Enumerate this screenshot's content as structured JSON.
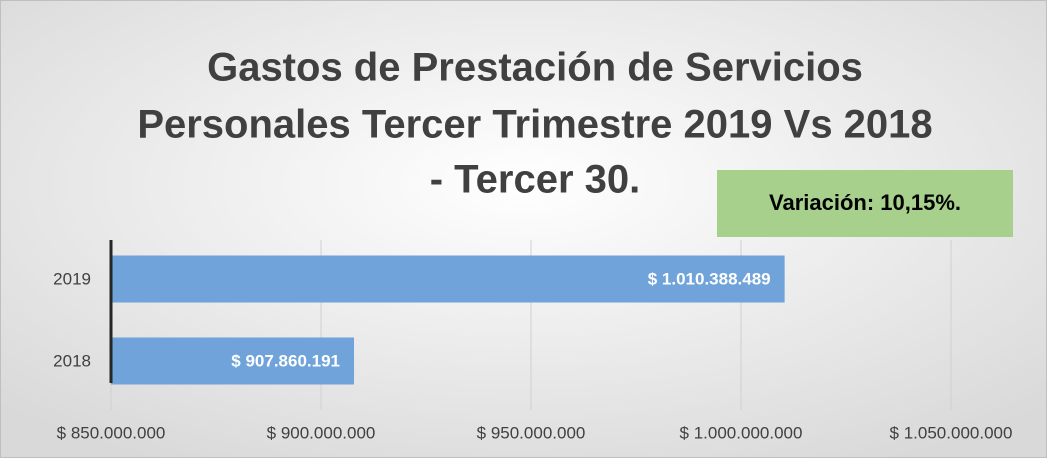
{
  "chart_data": {
    "type": "hbar",
    "title": [
      "Gastos de Prestación de Servicios",
      "Personales Tercer Trimestre 2019 Vs 2018",
      "- Tercer  30."
    ],
    "annotation": "Variación: 10,15%.",
    "categories": [
      "2019",
      "2018"
    ],
    "values": [
      1010388489,
      907860191
    ],
    "value_labels": [
      "$ 1.010.388.489",
      "$ 907.860.191"
    ],
    "color": "#6fa3da",
    "xlim": [
      850000000,
      1050000000
    ],
    "xticks": [
      {
        "value": 850000000,
        "label": "$ 850.000.000"
      },
      {
        "value": 900000000,
        "label": "$ 900.000.000"
      },
      {
        "value": 950000000,
        "label": "$ 950.000.000"
      },
      {
        "value": 1000000000,
        "label": "$ 1.000.000.000"
      },
      {
        "value": 1050000000,
        "label": "$ 1.050.000.000"
      }
    ],
    "grid": true
  }
}
